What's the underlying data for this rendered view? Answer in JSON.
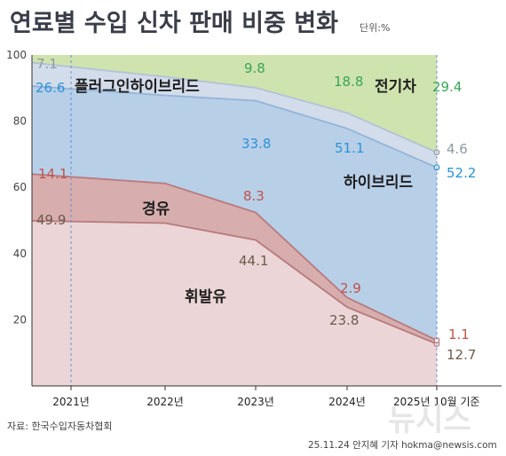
{
  "chart_data": {
    "type": "area",
    "stacked": true,
    "title": "연료별 수입 신차 판매 비중 변화",
    "unit": "단위:%",
    "categories": [
      "2021년",
      "2022년",
      "2023년",
      "2024년",
      "2025년 10월 기준"
    ],
    "ylim": [
      0,
      100
    ],
    "yticks": [
      "20",
      "40",
      "60",
      "80",
      "100"
    ],
    "series": [
      {
        "name": "휘발유",
        "color": "#ebd5d6",
        "values": [
          49.9,
          null,
          44.1,
          23.8,
          12.7
        ],
        "labels": [
          "49.9",
          "",
          "44.1",
          "23.8",
          "12.7"
        ],
        "label_color": "#6b5a4e"
      },
      {
        "name": "경유",
        "color": "#d7adae",
        "values": [
          14.1,
          null,
          8.3,
          2.9,
          1.1
        ],
        "labels": [
          "14.1",
          "",
          "8.3",
          "2.9",
          "1.1"
        ],
        "label_color": "#c0524a"
      },
      {
        "name": "하이브리드",
        "color": "#b8cfe8",
        "values": [
          26.6,
          null,
          33.8,
          51.1,
          52.2
        ],
        "labels": [
          "26.6",
          "",
          "33.8",
          "51.1",
          "52.2"
        ],
        "label_color": "#2b93d4"
      },
      {
        "name": "플러그인하이브리드",
        "color": "#d3dcea",
        "values": [
          7.1,
          null,
          3.9,
          4.7,
          4.6
        ],
        "labels": [
          "7.1",
          "",
          "",
          "",
          "4.6"
        ],
        "label_color": "#8f9aa4"
      },
      {
        "name": "전기차",
        "color": "#cfe3ae",
        "values": [
          0.8,
          null,
          9.8,
          18.8,
          29.4
        ],
        "labels": [
          "",
          "",
          "9.8",
          "18.8",
          "29.4"
        ],
        "label_color": "#3aa558"
      }
    ],
    "boundaries": {
      "gasoline_top": [
        49.9,
        49.2,
        44.1,
        23.8,
        12.7
      ],
      "diesel_top": [
        64.0,
        61.2,
        52.4,
        26.7,
        13.8
      ],
      "hybrid_top": [
        90.6,
        87.8,
        86.2,
        77.8,
        66.0
      ],
      "phev_top": [
        97.7,
        93.4,
        90.1,
        82.5,
        70.6
      ],
      "ev_top": [
        100,
        100,
        100,
        100,
        100
      ]
    }
  },
  "source": "자료: 한국수입자동차협회",
  "credit": "25.11.24 안지혜 기자 hokma@newsis.com",
  "watermark": "뉴시스",
  "colors": {
    "gasoline_line": "#b87a7c",
    "diesel_line": "#b87a7c",
    "hybrid_line": "#92b4d8",
    "phev_line": "#b3c2d6",
    "guide_line": "#6a8ed0"
  }
}
